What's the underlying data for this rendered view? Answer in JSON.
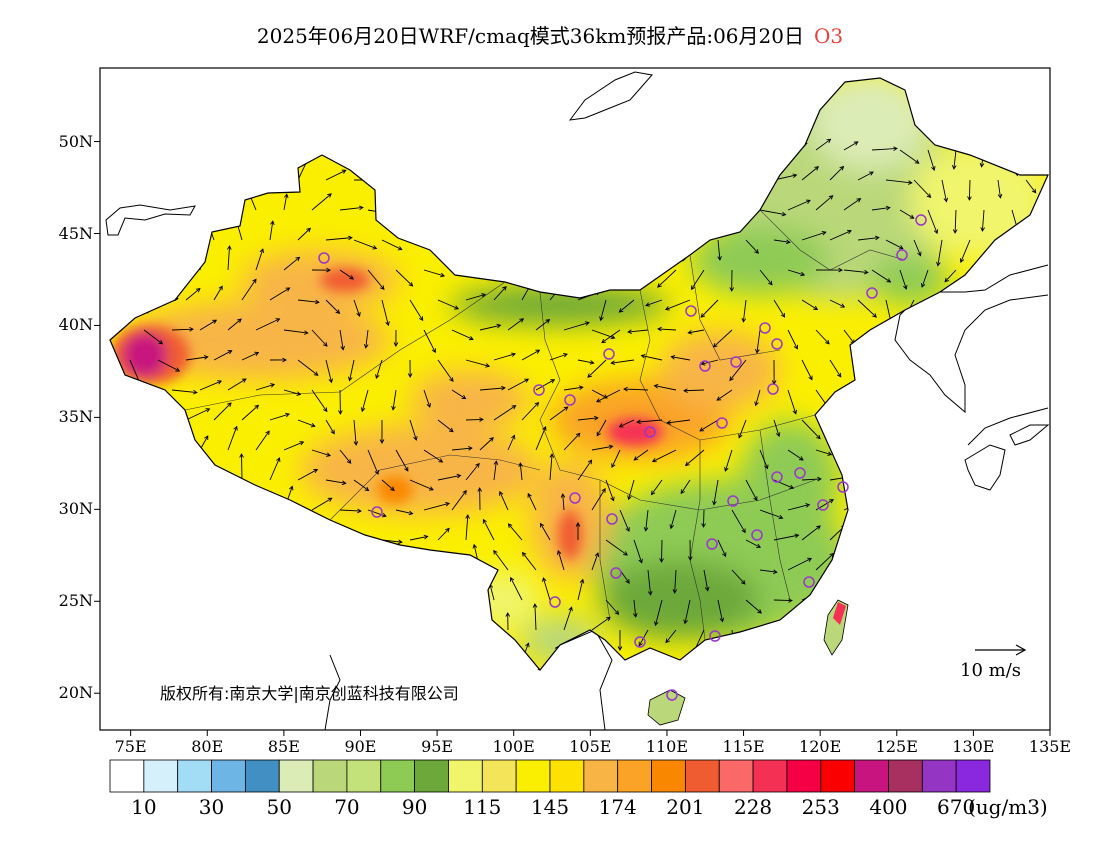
{
  "header": {
    "title": "2025年06月20日WRF/cmaq模式36km预报产品:06月20日",
    "pollutant": "O3"
  },
  "map": {
    "region": "China",
    "lon_range": [
      73,
      135
    ],
    "lat_range": [
      18,
      54
    ],
    "lat_ticks": [
      "20N",
      "25N",
      "30N",
      "35N",
      "40N",
      "45N",
      "50N"
    ],
    "lon_ticks": [
      "75E",
      "80E",
      "85E",
      "90E",
      "95E",
      "100E",
      "105E",
      "110E",
      "115E",
      "120E",
      "125E",
      "130E",
      "135E"
    ],
    "wind_reference": "10 m/s",
    "copyright": "版权所有:南京大学|南京创蓝科技有限公司"
  },
  "colorbar": {
    "colors": [
      "#ffffff",
      "#d6f0fb",
      "#a2dcf5",
      "#6cb5e4",
      "#418fc3",
      "#dcecb6",
      "#bad879",
      "#c4e27a",
      "#8ecb55",
      "#6ca83a",
      "#f0f56c",
      "#f3e45a",
      "#fbef00",
      "#fde100",
      "#f8b546",
      "#faa326",
      "#fa8700",
      "#f05c32",
      "#fa6868",
      "#f53055",
      "#f50045",
      "#fa0000",
      "#c8147e",
      "#a83060",
      "#9535c3",
      "#8a28df"
    ],
    "labels": [
      "10",
      "30",
      "50",
      "70",
      "90",
      "115",
      "145",
      "174",
      "201",
      "228",
      "253",
      "400",
      "670"
    ],
    "unit": "(ug/m3)"
  }
}
